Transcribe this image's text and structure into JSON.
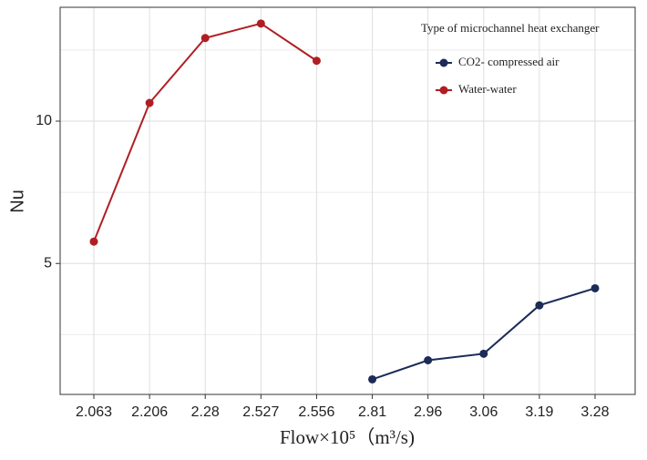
{
  "chart_data": {
    "type": "line",
    "xlabel": "Flow×10⁵（m³/s)",
    "ylabel": "Nu",
    "categories": [
      "2.063",
      "2.206",
      "2.28",
      "2.527",
      "2.556",
      "2.81",
      "2.96",
      "3.06",
      "3.19",
      "3.28"
    ],
    "series": [
      {
        "name": "CO2- compressed air",
        "color": "#1c2b57",
        "values": [
          null,
          null,
          null,
          null,
          null,
          0.93,
          1.6,
          1.83,
          3.53,
          4.13
        ]
      },
      {
        "name": "Water-water",
        "color": "#b01e23",
        "values": [
          5.77,
          10.64,
          12.92,
          13.43,
          12.12,
          null,
          null,
          null,
          null,
          null
        ]
      }
    ],
    "ylim": [
      0.4,
      14
    ],
    "yticks": [
      5,
      10
    ],
    "minor_yticks": [
      2.5,
      7.5,
      12.5
    ],
    "grid": true,
    "legend_title": "Type of microchannel heat exchanger",
    "legend_position": "upper right"
  }
}
